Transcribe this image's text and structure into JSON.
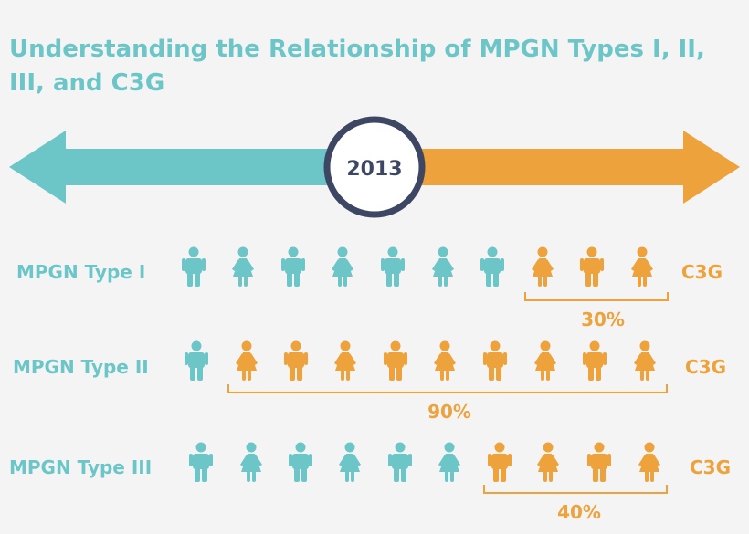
{
  "title": "Understanding the Relationship of MPGN Types I, II, III, and C3G",
  "timeline": {
    "year": "2013"
  },
  "colors": {
    "teal": "#6cc6c8",
    "orange": "#eea23b",
    "navy": "#3d4764"
  },
  "rows": [
    {
      "label": "MPGN Type I",
      "c3g_label": "C3G",
      "percent_label": "30%",
      "figures": [
        {
          "gender": "male",
          "group": "mpgn"
        },
        {
          "gender": "female",
          "group": "mpgn"
        },
        {
          "gender": "male",
          "group": "mpgn"
        },
        {
          "gender": "female",
          "group": "mpgn"
        },
        {
          "gender": "male",
          "group": "mpgn"
        },
        {
          "gender": "female",
          "group": "mpgn"
        },
        {
          "gender": "male",
          "group": "mpgn"
        },
        {
          "gender": "female",
          "group": "c3g"
        },
        {
          "gender": "male",
          "group": "c3g"
        },
        {
          "gender": "female",
          "group": "c3g"
        }
      ]
    },
    {
      "label": "MPGN Type II",
      "c3g_label": "C3G",
      "percent_label": "90%",
      "figures": [
        {
          "gender": "male",
          "group": "mpgn"
        },
        {
          "gender": "female",
          "group": "c3g"
        },
        {
          "gender": "male",
          "group": "c3g"
        },
        {
          "gender": "female",
          "group": "c3g"
        },
        {
          "gender": "male",
          "group": "c3g"
        },
        {
          "gender": "female",
          "group": "c3g"
        },
        {
          "gender": "male",
          "group": "c3g"
        },
        {
          "gender": "female",
          "group": "c3g"
        },
        {
          "gender": "male",
          "group": "c3g"
        },
        {
          "gender": "female",
          "group": "c3g"
        }
      ]
    },
    {
      "label": "MPGN Type III",
      "c3g_label": "C3G",
      "percent_label": "40%",
      "figures": [
        {
          "gender": "male",
          "group": "mpgn"
        },
        {
          "gender": "female",
          "group": "mpgn"
        },
        {
          "gender": "male",
          "group": "mpgn"
        },
        {
          "gender": "female",
          "group": "mpgn"
        },
        {
          "gender": "male",
          "group": "mpgn"
        },
        {
          "gender": "female",
          "group": "mpgn"
        },
        {
          "gender": "male",
          "group": "c3g"
        },
        {
          "gender": "female",
          "group": "c3g"
        },
        {
          "gender": "male",
          "group": "c3g"
        },
        {
          "gender": "female",
          "group": "c3g"
        }
      ]
    }
  ]
}
